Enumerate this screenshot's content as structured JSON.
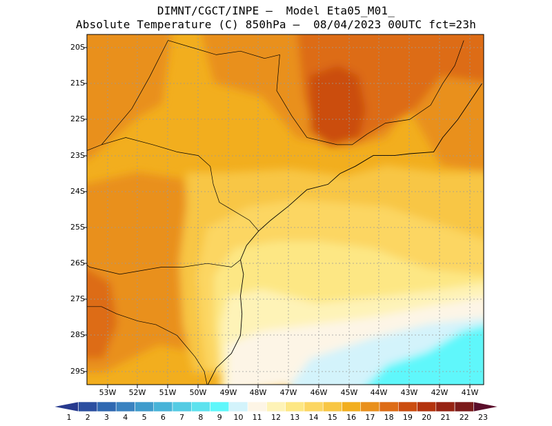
{
  "title": {
    "line1": "DIMNT/CGCT/INPE –  Model Eta05_M01_",
    "line2": "Absolute Temperature (C) 850hPa –  08/04/2023 00UTC fct=23h"
  },
  "map": {
    "lat_labels": [
      "20S",
      "21S",
      "22S",
      "23S",
      "24S",
      "25S",
      "26S",
      "27S",
      "28S",
      "29S"
    ],
    "lon_labels": [
      "53W",
      "52W",
      "51W",
      "50W",
      "49W",
      "48W",
      "47W",
      "46W",
      "45W",
      "44W",
      "43W",
      "42W",
      "41W"
    ],
    "extent": {
      "lon_min": -54.3,
      "lon_max": -40.6,
      "lat_min": -29.4,
      "lat_max": -19.8
    },
    "land_polygons": [
      {
        "name": "brazil-coastline",
        "points": [
          [
            -49.7,
            -29.4
          ],
          [
            -49.4,
            -28.9
          ],
          [
            -48.9,
            -28.5
          ],
          [
            -48.6,
            -28.0
          ],
          [
            -48.55,
            -27.4
          ],
          [
            -48.6,
            -26.9
          ],
          [
            -48.5,
            -26.3
          ],
          [
            -48.6,
            -25.9
          ],
          [
            -48.4,
            -25.5
          ],
          [
            -48.0,
            -25.1
          ],
          [
            -47.6,
            -24.8
          ],
          [
            -47.0,
            -24.4
          ],
          [
            -46.4,
            -23.95
          ],
          [
            -45.7,
            -23.8
          ],
          [
            -45.3,
            -23.5
          ],
          [
            -44.8,
            -23.3
          ],
          [
            -44.2,
            -23.0
          ],
          [
            -43.5,
            -23.0
          ],
          [
            -43.0,
            -22.95
          ],
          [
            -42.2,
            -22.9
          ],
          [
            -41.9,
            -22.5
          ],
          [
            -41.4,
            -22.0
          ],
          [
            -41.0,
            -21.5
          ],
          [
            -40.6,
            -21.0
          ]
        ]
      }
    ],
    "borders": [
      {
        "name": "state-border-mg-sp",
        "points": [
          [
            -51.0,
            -19.8
          ],
          [
            -50.2,
            -20.0
          ],
          [
            -49.4,
            -20.2
          ],
          [
            -48.6,
            -20.1
          ],
          [
            -47.8,
            -20.3
          ],
          [
            -47.3,
            -20.2
          ],
          [
            -47.4,
            -21.2
          ],
          [
            -46.9,
            -21.9
          ],
          [
            -46.4,
            -22.5
          ],
          [
            -45.4,
            -22.7
          ],
          [
            -44.9,
            -22.7
          ],
          [
            -44.4,
            -22.4
          ]
        ]
      },
      {
        "name": "state-border-sp-pr",
        "points": [
          [
            -53.2,
            -22.7
          ],
          [
            -52.4,
            -22.5
          ],
          [
            -51.5,
            -22.7
          ],
          [
            -50.7,
            -22.9
          ],
          [
            -50.0,
            -23.0
          ],
          [
            -49.6,
            -23.3
          ],
          [
            -49.5,
            -23.8
          ],
          [
            -49.3,
            -24.3
          ],
          [
            -48.9,
            -24.5
          ],
          [
            -48.3,
            -24.8
          ],
          [
            -48.0,
            -25.1
          ]
        ]
      },
      {
        "name": "state-border-pr-sc",
        "points": [
          [
            -54.3,
            -25.6
          ],
          [
            -53.6,
            -26.1
          ],
          [
            -52.6,
            -26.3
          ],
          [
            -51.9,
            -26.2
          ],
          [
            -51.2,
            -26.1
          ],
          [
            -50.5,
            -26.1
          ],
          [
            -49.7,
            -26.0
          ],
          [
            -48.9,
            -26.1
          ],
          [
            -48.6,
            -25.9
          ]
        ]
      },
      {
        "name": "state-border-sc-rs",
        "points": [
          [
            -54.3,
            -27.1
          ],
          [
            -53.8,
            -27.2
          ],
          [
            -53.2,
            -27.2
          ],
          [
            -52.7,
            -27.4
          ],
          [
            -52.0,
            -27.6
          ],
          [
            -51.4,
            -27.7
          ],
          [
            -50.7,
            -28.0
          ],
          [
            -50.1,
            -28.6
          ],
          [
            -49.8,
            -29.0
          ],
          [
            -49.7,
            -29.4
          ]
        ]
      },
      {
        "name": "state-border-mg-rj",
        "points": [
          [
            -44.4,
            -22.4
          ],
          [
            -43.8,
            -22.1
          ],
          [
            -43.0,
            -22.0
          ],
          [
            -42.3,
            -21.6
          ],
          [
            -41.9,
            -21.0
          ],
          [
            -41.5,
            -20.5
          ],
          [
            -41.2,
            -19.8
          ]
        ]
      },
      {
        "name": "state-border-ms-sp",
        "points": [
          [
            -51.0,
            -19.8
          ],
          [
            -51.6,
            -20.8
          ],
          [
            -52.2,
            -21.7
          ],
          [
            -53.2,
            -22.7
          ]
        ]
      },
      {
        "name": "state-border-ms-pr",
        "points": [
          [
            -53.2,
            -22.7
          ],
          [
            -53.8,
            -22.9
          ],
          [
            -54.3,
            -23.2
          ]
        ]
      }
    ]
  },
  "colorbar": {
    "labels": [
      "1",
      "2",
      "3",
      "4",
      "5",
      "6",
      "7",
      "8",
      "9",
      "10",
      "11",
      "12",
      "13",
      "14",
      "15",
      "16",
      "17",
      "18",
      "19",
      "20",
      "21",
      "22",
      "23"
    ],
    "colors": [
      "#273a8e",
      "#2c4fa0",
      "#2f68b1",
      "#3a82c0",
      "#3f9bcc",
      "#48b3d8",
      "#54cbe3",
      "#5ee2ee",
      "#5ff7fb",
      "#d3f3fb",
      "#fdf5e6",
      "#fef3b7",
      "#fde784",
      "#fcd662",
      "#f8c644",
      "#f2ae1e",
      "#e9901c",
      "#dd6c16",
      "#cb4d10",
      "#b3330d",
      "#962313",
      "#7b1a1a",
      "#5a0d2a"
    ]
  }
}
